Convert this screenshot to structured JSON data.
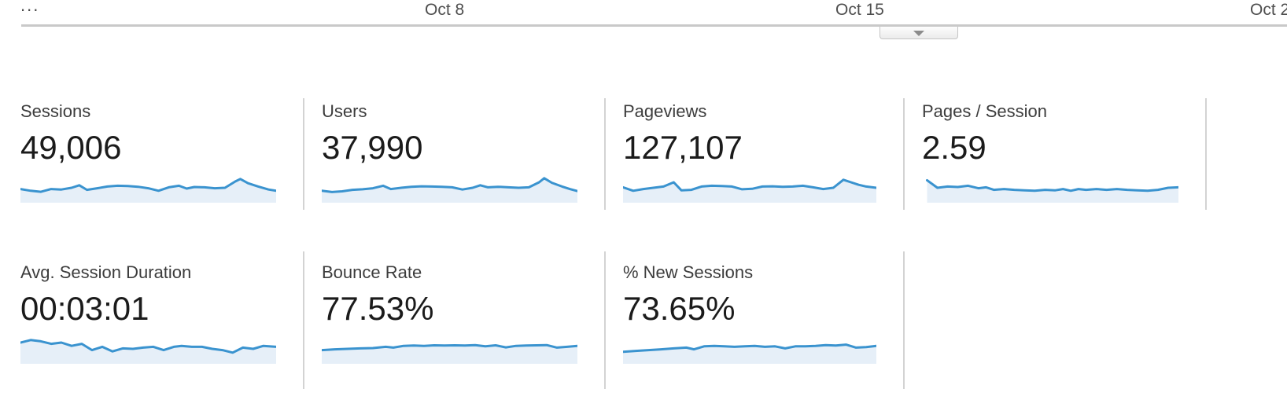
{
  "theme": {
    "spark_stroke": "#3a93cf",
    "spark_fill": "#e6eff8",
    "divider": "#d3d3d3",
    "axis_text": "#4e4e4e"
  },
  "timeline": {
    "ellipsis": "...",
    "ticks": [
      "Oct 8",
      "Oct 15",
      "Oct 2"
    ]
  },
  "collapse_tab": {
    "icon": "chevron-down-icon"
  },
  "metrics": [
    {
      "label": "Sessions",
      "value": "49,006"
    },
    {
      "label": "Users",
      "value": "37,990"
    },
    {
      "label": "Pageviews",
      "value": "127,107"
    },
    {
      "label": "Pages / Session",
      "value": "2.59"
    },
    {
      "label": "Avg. Session Duration",
      "value": "00:03:01"
    },
    {
      "label": "Bounce Rate",
      "value": "77.53%"
    },
    {
      "label": "% New Sessions",
      "value": "73.65%"
    }
  ],
  "chart_data": [
    {
      "type": "area",
      "name": "Sessions",
      "y_scale": "relative 0-100",
      "points": [
        [
          0,
          45
        ],
        [
          4,
          38
        ],
        [
          8,
          34
        ],
        [
          12,
          45
        ],
        [
          16,
          43
        ],
        [
          20,
          50
        ],
        [
          23,
          60
        ],
        [
          26,
          42
        ],
        [
          30,
          48
        ],
        [
          34,
          55
        ],
        [
          38,
          58
        ],
        [
          42,
          57
        ],
        [
          46,
          54
        ],
        [
          50,
          48
        ],
        [
          54,
          38
        ],
        [
          58,
          52
        ],
        [
          62,
          58
        ],
        [
          65,
          47
        ],
        [
          68,
          53
        ],
        [
          72,
          52
        ],
        [
          76,
          48
        ],
        [
          80,
          50
        ],
        [
          84,
          75
        ],
        [
          86,
          85
        ],
        [
          89,
          68
        ],
        [
          93,
          55
        ],
        [
          97,
          43
        ],
        [
          100,
          38
        ]
      ]
    },
    {
      "type": "area",
      "name": "Users",
      "y_scale": "relative 0-100",
      "points": [
        [
          0,
          38
        ],
        [
          4,
          33
        ],
        [
          8,
          36
        ],
        [
          12,
          42
        ],
        [
          16,
          44
        ],
        [
          20,
          48
        ],
        [
          24,
          58
        ],
        [
          27,
          45
        ],
        [
          31,
          50
        ],
        [
          35,
          54
        ],
        [
          39,
          56
        ],
        [
          43,
          55
        ],
        [
          47,
          54
        ],
        [
          51,
          52
        ],
        [
          55,
          43
        ],
        [
          59,
          50
        ],
        [
          62,
          60
        ],
        [
          65,
          52
        ],
        [
          69,
          54
        ],
        [
          73,
          52
        ],
        [
          77,
          50
        ],
        [
          81,
          52
        ],
        [
          85,
          72
        ],
        [
          87,
          88
        ],
        [
          90,
          70
        ],
        [
          94,
          55
        ],
        [
          97,
          45
        ],
        [
          100,
          37
        ]
      ]
    },
    {
      "type": "area",
      "name": "Pageviews",
      "y_scale": "relative 0-100",
      "points": [
        [
          0,
          52
        ],
        [
          4,
          38
        ],
        [
          8,
          45
        ],
        [
          12,
          50
        ],
        [
          16,
          55
        ],
        [
          20,
          72
        ],
        [
          23,
          40
        ],
        [
          27,
          42
        ],
        [
          31,
          55
        ],
        [
          35,
          58
        ],
        [
          39,
          57
        ],
        [
          43,
          55
        ],
        [
          47,
          44
        ],
        [
          51,
          46
        ],
        [
          55,
          55
        ],
        [
          59,
          56
        ],
        [
          63,
          54
        ],
        [
          67,
          55
        ],
        [
          71,
          58
        ],
        [
          75,
          52
        ],
        [
          79,
          45
        ],
        [
          83,
          50
        ],
        [
          87,
          82
        ],
        [
          90,
          72
        ],
        [
          93,
          62
        ],
        [
          96,
          55
        ],
        [
          100,
          50
        ]
      ]
    },
    {
      "type": "area",
      "name": "Pages / Session",
      "y_scale": "relative 0-100",
      "points": [
        [
          2,
          80
        ],
        [
          6,
          50
        ],
        [
          10,
          55
        ],
        [
          14,
          53
        ],
        [
          18,
          58
        ],
        [
          22,
          48
        ],
        [
          25,
          52
        ],
        [
          28,
          42
        ],
        [
          32,
          45
        ],
        [
          36,
          42
        ],
        [
          40,
          40
        ],
        [
          44,
          38
        ],
        [
          48,
          42
        ],
        [
          52,
          40
        ],
        [
          55,
          45
        ],
        [
          58,
          38
        ],
        [
          61,
          45
        ],
        [
          64,
          42
        ],
        [
          68,
          45
        ],
        [
          72,
          42
        ],
        [
          76,
          45
        ],
        [
          80,
          42
        ],
        [
          84,
          40
        ],
        [
          88,
          38
        ],
        [
          92,
          42
        ],
        [
          96,
          50
        ],
        [
          100,
          52
        ]
      ]
    },
    {
      "type": "area",
      "name": "Avg. Session Duration",
      "y_scale": "relative 0-100",
      "points": [
        [
          0,
          75
        ],
        [
          4,
          85
        ],
        [
          8,
          80
        ],
        [
          12,
          70
        ],
        [
          16,
          75
        ],
        [
          20,
          62
        ],
        [
          24,
          70
        ],
        [
          28,
          45
        ],
        [
          32,
          58
        ],
        [
          36,
          40
        ],
        [
          40,
          52
        ],
        [
          44,
          50
        ],
        [
          48,
          55
        ],
        [
          52,
          58
        ],
        [
          56,
          45
        ],
        [
          60,
          58
        ],
        [
          63,
          62
        ],
        [
          67,
          58
        ],
        [
          71,
          58
        ],
        [
          75,
          50
        ],
        [
          79,
          45
        ],
        [
          83,
          35
        ],
        [
          87,
          55
        ],
        [
          91,
          50
        ],
        [
          95,
          62
        ],
        [
          100,
          58
        ]
      ]
    },
    {
      "type": "area",
      "name": "Bounce Rate",
      "y_scale": "relative 0-100",
      "points": [
        [
          0,
          45
        ],
        [
          5,
          48
        ],
        [
          10,
          50
        ],
        [
          15,
          52
        ],
        [
          20,
          53
        ],
        [
          25,
          58
        ],
        [
          28,
          55
        ],
        [
          32,
          62
        ],
        [
          36,
          63
        ],
        [
          40,
          62
        ],
        [
          44,
          64
        ],
        [
          48,
          63
        ],
        [
          52,
          64
        ],
        [
          56,
          63
        ],
        [
          60,
          65
        ],
        [
          64,
          60
        ],
        [
          68,
          64
        ],
        [
          72,
          56
        ],
        [
          76,
          62
        ],
        [
          80,
          63
        ],
        [
          84,
          64
        ],
        [
          88,
          65
        ],
        [
          92,
          55
        ],
        [
          96,
          58
        ],
        [
          100,
          62
        ]
      ]
    },
    {
      "type": "area",
      "name": "% New Sessions",
      "y_scale": "relative 0-100",
      "points": [
        [
          0,
          38
        ],
        [
          5,
          42
        ],
        [
          10,
          45
        ],
        [
          15,
          48
        ],
        [
          20,
          52
        ],
        [
          25,
          55
        ],
        [
          28,
          48
        ],
        [
          32,
          60
        ],
        [
          36,
          62
        ],
        [
          40,
          60
        ],
        [
          44,
          58
        ],
        [
          48,
          60
        ],
        [
          52,
          62
        ],
        [
          56,
          58
        ],
        [
          60,
          60
        ],
        [
          64,
          52
        ],
        [
          68,
          60
        ],
        [
          72,
          60
        ],
        [
          76,
          62
        ],
        [
          80,
          65
        ],
        [
          84,
          63
        ],
        [
          88,
          67
        ],
        [
          92,
          55
        ],
        [
          96,
          57
        ],
        [
          100,
          62
        ]
      ]
    }
  ]
}
